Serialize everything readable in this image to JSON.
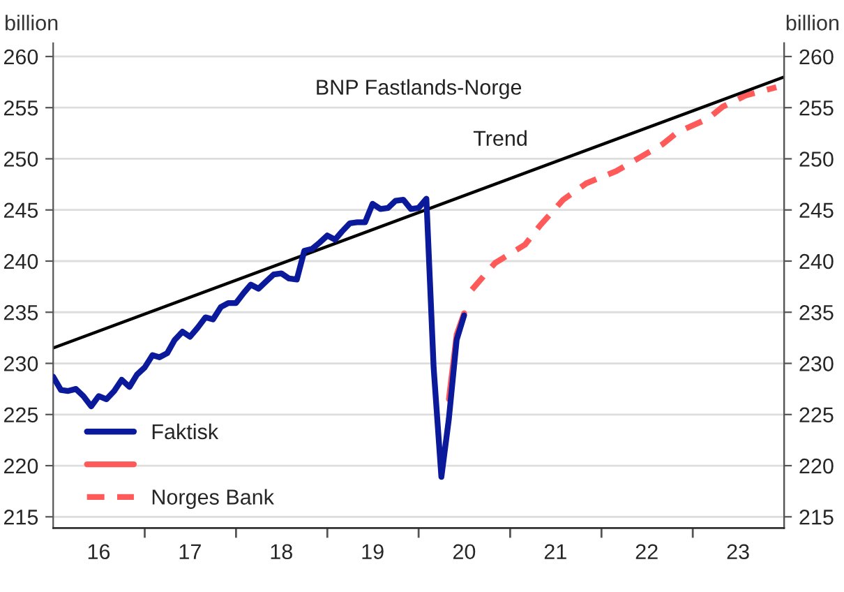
{
  "chart_data": {
    "type": "line",
    "title": "BNP Fastlands-Norge",
    "ylabel": "billion",
    "y2label": "billion",
    "annotations": [
      "Trend"
    ],
    "xlim": [
      "2016-01",
      "2024-01"
    ],
    "xticks": [
      {
        "value": "2017-01",
        "label": null
      },
      {
        "value": "2018-01",
        "label": null
      },
      {
        "value": "2019-01",
        "label": null
      },
      {
        "value": "2020-01",
        "label": null
      },
      {
        "value": "2021-01",
        "label": null
      },
      {
        "value": "2022-01",
        "label": null
      },
      {
        "value": "2023-01",
        "label": null
      },
      {
        "value": "2016-07",
        "label": "16"
      },
      {
        "value": "2017-07",
        "label": "17"
      },
      {
        "value": "2018-07",
        "label": "18"
      },
      {
        "value": "2019-07",
        "label": "19"
      },
      {
        "value": "2020-07",
        "label": "20"
      },
      {
        "value": "2021-07",
        "label": "21"
      },
      {
        "value": "2022-07",
        "label": "22"
      },
      {
        "value": "2023-07",
        "label": "23"
      }
    ],
    "ylim": [
      213.9,
      261.3
    ],
    "yticks": [
      215,
      220,
      225,
      230,
      235,
      240,
      245,
      250,
      255,
      260
    ],
    "y2lim": [
      213.9,
      261.3
    ],
    "y2ticks": [
      215,
      220,
      225,
      230,
      235,
      240,
      245,
      250,
      255,
      260
    ],
    "grid": "y",
    "legend": "bottom left",
    "marker": "none",
    "series": [
      {
        "name": "Faktisk",
        "color": "#0a1a9a",
        "line_style": "solid",
        "x": [
          "2016-01",
          "2016-02",
          "2016-03",
          "2016-04",
          "2016-05",
          "2016-06",
          "2016-07",
          "2016-08",
          "2016-09",
          "2016-10",
          "2016-11",
          "2016-12",
          "2017-01",
          "2017-02",
          "2017-03",
          "2017-04",
          "2017-05",
          "2017-06",
          "2017-07",
          "2017-08",
          "2017-09",
          "2017-10",
          "2017-11",
          "2017-12",
          "2018-01",
          "2018-02",
          "2018-03",
          "2018-04",
          "2018-05",
          "2018-06",
          "2018-07",
          "2018-08",
          "2018-09",
          "2018-10",
          "2018-11",
          "2018-12",
          "2019-01",
          "2019-02",
          "2019-03",
          "2019-04",
          "2019-05",
          "2019-06",
          "2019-07",
          "2019-08",
          "2019-09",
          "2019-10",
          "2019-11",
          "2019-12",
          "2020-01",
          "2020-02",
          "2020-03",
          "2020-04",
          "2020-05",
          "2020-06",
          "2020-07"
        ],
        "values": [
          228.7,
          227.4,
          227.3,
          227.5,
          226.8,
          225.8,
          226.8,
          226.5,
          227.3,
          228.4,
          227.7,
          228.9,
          229.6,
          230.8,
          230.6,
          231.0,
          232.3,
          233.1,
          232.6,
          233.5,
          234.5,
          234.3,
          235.5,
          235.9,
          235.9,
          236.9,
          237.7,
          237.3,
          238.0,
          238.7,
          238.8,
          238.3,
          238.2,
          241.0,
          241.2,
          241.8,
          242.5,
          242.1,
          242.9,
          243.7,
          243.8,
          243.8,
          245.6,
          245.1,
          245.2,
          245.9,
          246.0,
          245.1,
          245.2,
          246.1,
          229.6,
          218.9,
          224.6,
          232.3,
          234.7
        ]
      },
      {
        "color": "#ff5a5a",
        "line_style": "solid",
        "x": [
          "2020-05",
          "2020-06",
          "2020-07"
        ],
        "values": [
          226.5,
          232.8,
          234.9
        ]
      },
      {
        "name": "Norges Bank",
        "color": "#ff5a5a",
        "line_style": "dashed",
        "x": [
          "2020-08",
          "2020-11",
          "2021-03",
          "2021-05",
          "2021-08",
          "2021-11",
          "2022-03",
          "2022-06",
          "2022-09",
          "2022-11",
          "2023-03",
          "2023-05",
          "2023-08",
          "2023-12"
        ],
        "values": [
          237.2,
          239.8,
          241.6,
          243.5,
          246.0,
          247.6,
          248.8,
          250.1,
          251.4,
          252.6,
          253.9,
          255.1,
          256.2,
          257.0
        ]
      },
      {
        "color": "#000000",
        "line_style": "solid",
        "x": [
          "2016-01",
          "2024-01"
        ],
        "values": [
          231.5,
          258.0
        ]
      }
    ]
  }
}
